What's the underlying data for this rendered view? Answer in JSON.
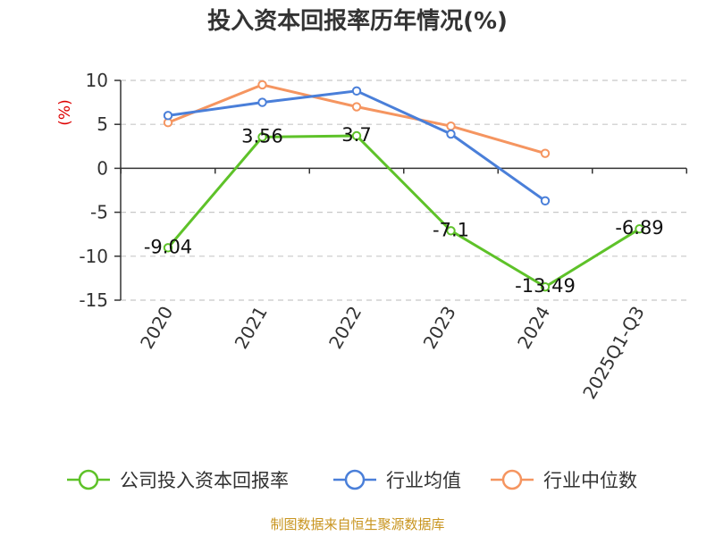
{
  "chart_data": {
    "type": "line",
    "title": "投入资本回报率历年情况(%)",
    "ylabel": "(%)",
    "categories": [
      "2020",
      "2021",
      "2022",
      "2023",
      "2024",
      "2025Q1-Q3"
    ],
    "ylim": [
      -15,
      10
    ],
    "yticks": [
      10,
      5,
      0,
      -5,
      -10,
      -15
    ],
    "ytick_labels": [
      "10",
      "5",
      "0",
      "-5",
      "-10",
      "-15"
    ],
    "grid": true,
    "legend_position": "bottom",
    "series": [
      {
        "name": "公司投入资本回报率",
        "color": "#5ec229",
        "values": [
          -9.04,
          3.56,
          3.7,
          -7.1,
          -13.49,
          -6.89
        ],
        "labels": [
          "-9.04",
          "3.56",
          "3.7",
          "-7.1",
          "-13.49",
          "-6.89"
        ]
      },
      {
        "name": "行业均值",
        "color": "#4a7fd9",
        "values": [
          6.0,
          7.5,
          8.8,
          3.9,
          -3.7,
          null
        ]
      },
      {
        "name": "行业中位数",
        "color": "#f59560",
        "values": [
          5.2,
          9.5,
          7.0,
          4.8,
          1.7,
          null
        ]
      }
    ]
  },
  "source": "制图数据来自恒生聚源数据库"
}
